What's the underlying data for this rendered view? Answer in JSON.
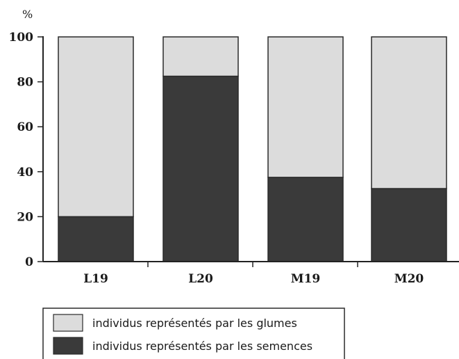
{
  "chart_data": {
    "type": "bar",
    "stacked": true,
    "ylabel": "%",
    "ylim": [
      0,
      100
    ],
    "yticks": [
      0,
      20,
      40,
      60,
      80,
      100
    ],
    "categories": [
      "L19",
      "L20",
      "M19",
      "M20"
    ],
    "series": [
      {
        "name": "individus représentés par les semences",
        "color": "#3a3a3a",
        "values": [
          20,
          82.5,
          37.5,
          32.5
        ]
      },
      {
        "name": "individus représentés par les glumes",
        "color": "#dcdcdc",
        "values": [
          80,
          17.5,
          62.5,
          67.5
        ]
      }
    ],
    "legend_order": [
      1,
      0
    ],
    "legend_position": "bottom-left",
    "grid": false
  }
}
